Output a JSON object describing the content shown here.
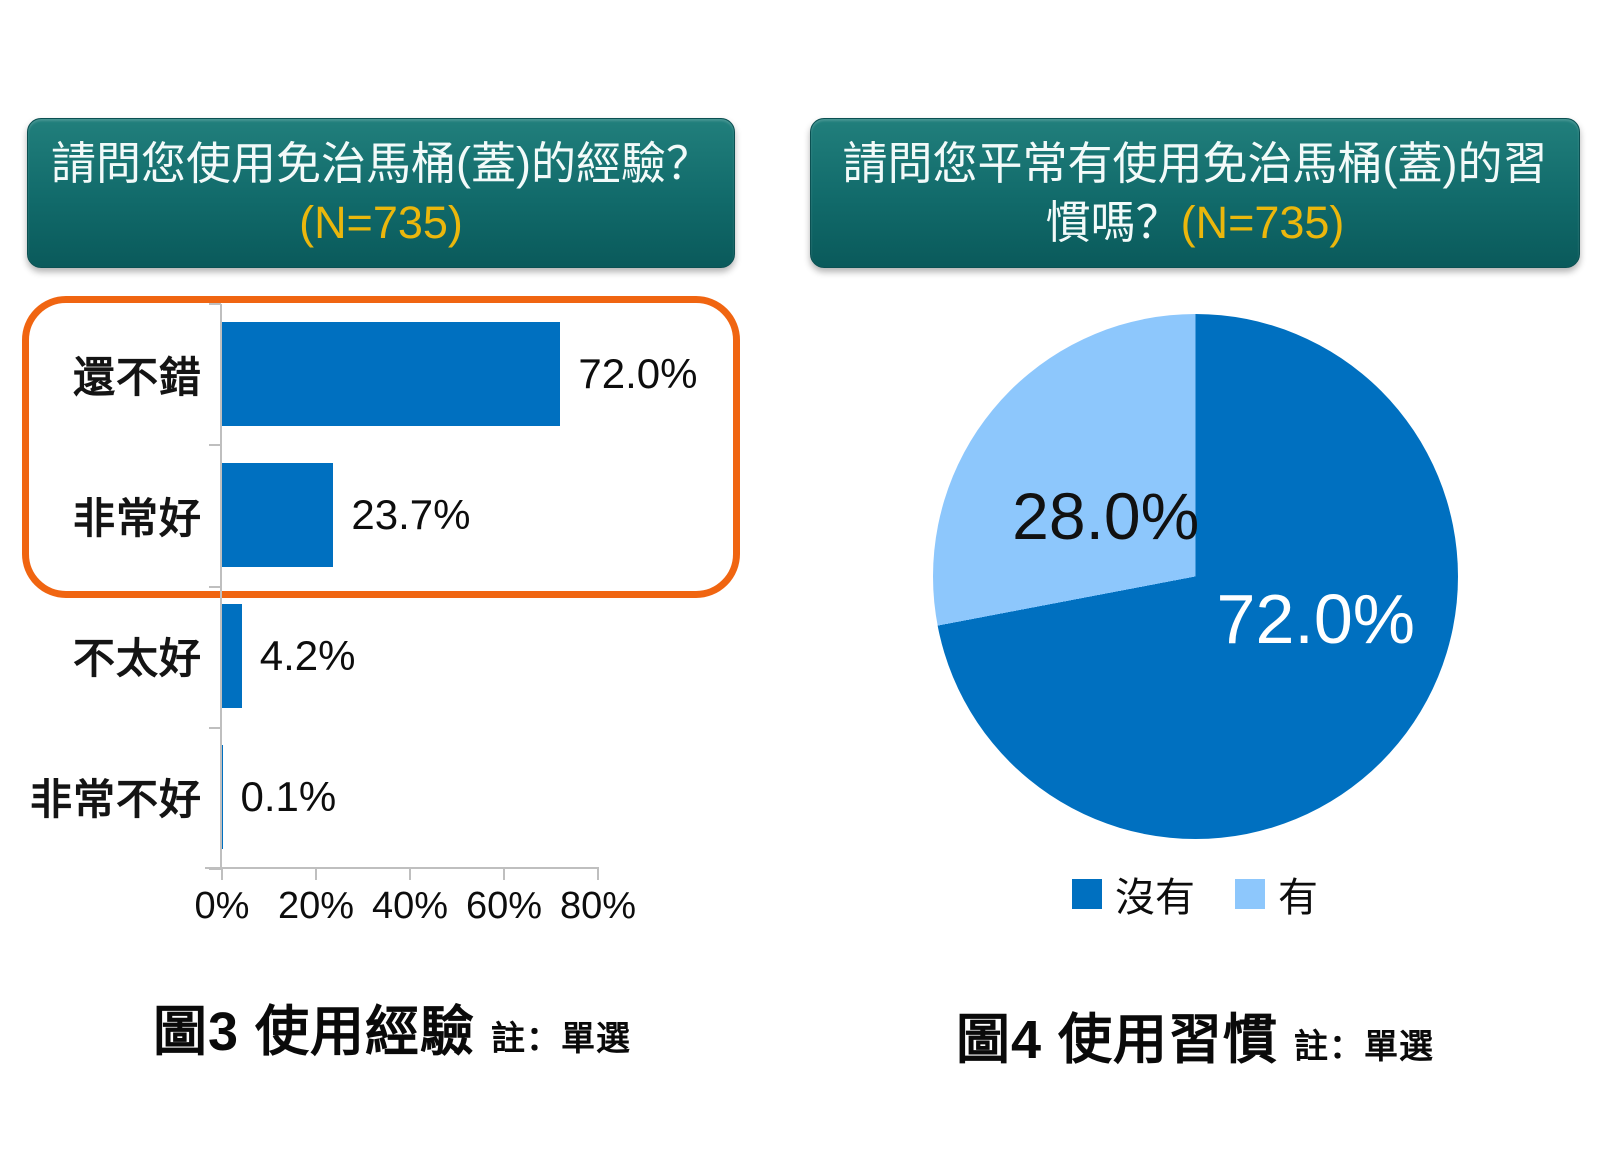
{
  "chart_data": [
    {
      "type": "bar",
      "orientation": "horizontal",
      "title": "請問您使用免治馬桶(蓋)的經驗？",
      "title_n": "(N=735)",
      "categories": [
        "還不錯",
        "非常好",
        "不太好",
        "非常不好"
      ],
      "values": [
        72.0,
        23.7,
        4.2,
        0.1
      ],
      "value_labels": [
        "72.0%",
        "23.7%",
        "4.2%",
        "0.1%"
      ],
      "xlim": [
        0,
        80
      ],
      "xticks": [
        0,
        20,
        40,
        60,
        80
      ],
      "xtick_labels": [
        "0%",
        "20%",
        "40%",
        "60%",
        "80%"
      ],
      "bar_color": "#0070c0",
      "axis_color": "#bfbfbf",
      "grid": false,
      "annotation": {
        "shape": "rounded_rect_outline",
        "color": "#f06511",
        "encloses": [
          "還不錯",
          "非常好"
        ]
      },
      "caption": "圖3 使用經驗",
      "caption_note": "註：單選"
    },
    {
      "type": "pie",
      "title": "請問您平常有使用免治馬桶(蓋)的習慣嗎？",
      "title_n": "(N=735)",
      "categories": [
        "沒有",
        "有"
      ],
      "values": [
        72.0,
        28.0
      ],
      "value_labels": [
        "72.0%",
        "28.0%"
      ],
      "colors": [
        "#0070c0",
        "#8dc7fc"
      ],
      "label_colors": [
        "#ffffff",
        "#111111"
      ],
      "start_angle_deg": 0,
      "direction": "clockwise",
      "legend": [
        "沒有",
        "有"
      ],
      "legend_position": "bottom",
      "caption": "圖4 使用習慣",
      "caption_note": "註：單選"
    }
  ],
  "styles": {
    "title_text_color": "#f2faf9",
    "title_n_color": "#ebb70c",
    "title_bg_top": "#217f7c",
    "title_bg_bottom": "#0a5a5b"
  }
}
